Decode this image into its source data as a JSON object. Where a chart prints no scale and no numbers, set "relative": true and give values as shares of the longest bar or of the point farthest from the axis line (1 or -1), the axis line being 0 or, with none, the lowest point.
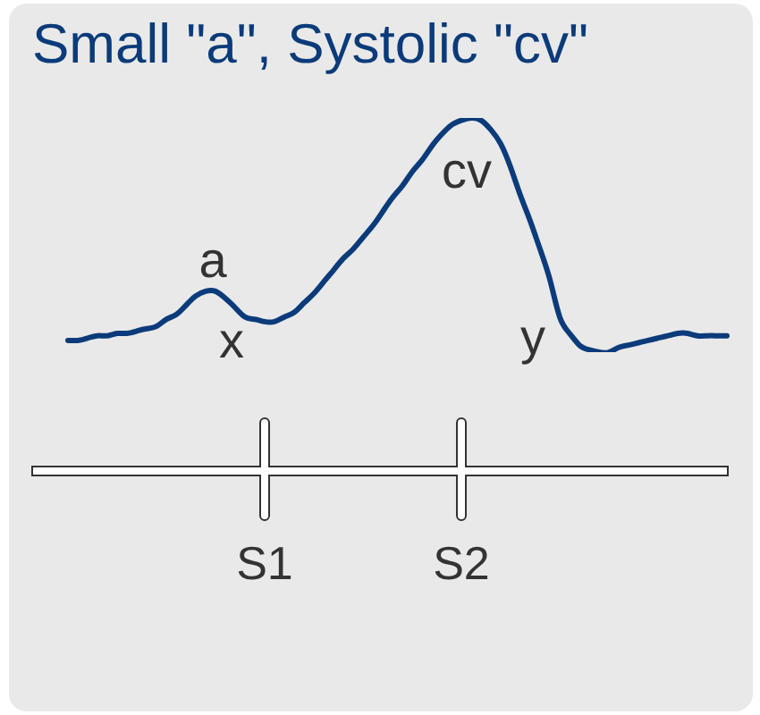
{
  "chart_data": {
    "type": "line",
    "title": "Small \"a\", Systolic \"cv\"",
    "relative": true,
    "categories": [
      null,
      null,
      null,
      null,
      null,
      null,
      null,
      null,
      null,
      null,
      null,
      null,
      null,
      null,
      null,
      null,
      null,
      null,
      null,
      null,
      "S1",
      null,
      null,
      null,
      null,
      null,
      null,
      null,
      null,
      null,
      null,
      null,
      null,
      null,
      null,
      null,
      null,
      null,
      null,
      null,
      "S2",
      null,
      null,
      null,
      null,
      null,
      null,
      null,
      null,
      null,
      null,
      null,
      null,
      null,
      null,
      null,
      null,
      null,
      null,
      null,
      null,
      null,
      null,
      null,
      null,
      null,
      null,
      null
    ],
    "series": [
      {
        "color": "#0b3b7a",
        "values": [
          0.05,
          0.05,
          0.06,
          0.07,
          0.07,
          0.08,
          0.08,
          0.09,
          0.1,
          0.11,
          0.14,
          0.16,
          0.2,
          0.24,
          0.26,
          0.26,
          0.23,
          0.19,
          0.15,
          0.14,
          0.13,
          0.13,
          0.15,
          0.17,
          0.21,
          0.25,
          0.3,
          0.35,
          0.4,
          0.44,
          0.49,
          0.54,
          0.6,
          0.66,
          0.71,
          0.77,
          0.82,
          0.88,
          0.93,
          0.97,
          0.99,
          1,
          0.99,
          0.95,
          0.89,
          0.79,
          0.67,
          0.56,
          0.44,
          0.31,
          0.15,
          0.08,
          0.03,
          0.01,
          0,
          0,
          0.02,
          0.03,
          0.04,
          0.05,
          0.06,
          0.07,
          0.08,
          0.08,
          0.07,
          0.07,
          0.07,
          0.07
        ]
      }
    ],
    "annotations": [
      "a",
      "x",
      "cv",
      "y"
    ]
  }
}
